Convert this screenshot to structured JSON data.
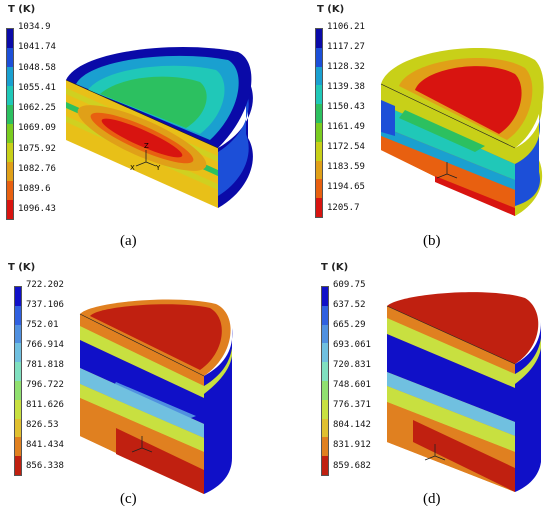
{
  "panels": [
    {
      "caption": "(a)",
      "legend_title": "T (K)",
      "ticks": [
        "1034.9",
        "1041.74",
        "1048.58",
        "1055.41",
        "1062.25",
        "1069.09",
        "1075.92",
        "1082.76",
        "1089.6",
        "1096.43"
      ],
      "colors": [
        "#0a0aa8",
        "#1c4fd8",
        "#1aa0d0",
        "#20c8b8",
        "#2cc060",
        "#7acc20",
        "#c8d018",
        "#e0a018",
        "#e86010",
        "#d81410"
      ],
      "axis_labels": [
        "Z",
        "Y",
        "X"
      ]
    },
    {
      "caption": "(b)",
      "legend_title": "T (K)",
      "ticks": [
        "1106.21",
        "1117.27",
        "1128.32",
        "1139.38",
        "1150.43",
        "1161.49",
        "1172.54",
        "1183.59",
        "1194.65",
        "1205.7"
      ],
      "colors": [
        "#0a0aa8",
        "#1c4fd8",
        "#1aa0d0",
        "#20c8b8",
        "#2cc060",
        "#7acc20",
        "#c8d018",
        "#e0a018",
        "#e86010",
        "#d81410"
      ],
      "axis_labels": [
        "Z",
        "Y",
        "X"
      ]
    },
    {
      "caption": "(c)",
      "legend_title": "T (K)",
      "ticks": [
        "722.202",
        "737.106",
        "752.01",
        "766.914",
        "781.818",
        "796.722",
        "811.626",
        "826.53",
        "841.434",
        "856.338"
      ],
      "colors": [
        "#1010c8",
        "#3060e0",
        "#5090e0",
        "#70c0e0",
        "#80e0c0",
        "#90e070",
        "#c8e040",
        "#e0c030",
        "#e08020",
        "#c02010"
      ],
      "axis_labels": [
        "Z",
        "Y",
        "X"
      ]
    },
    {
      "caption": "(d)",
      "legend_title": "T (K)",
      "ticks": [
        "609.75",
        "637.52",
        "665.29",
        "693.061",
        "720.831",
        "748.601",
        "776.371",
        "804.142",
        "831.912",
        "859.682"
      ],
      "colors": [
        "#1010c8",
        "#3060e0",
        "#5090e0",
        "#70c0e0",
        "#80e0c0",
        "#90e070",
        "#c8e040",
        "#e0c030",
        "#e08020",
        "#c02010"
      ],
      "axis_labels": [
        "Z",
        "Y",
        "X"
      ]
    }
  ]
}
